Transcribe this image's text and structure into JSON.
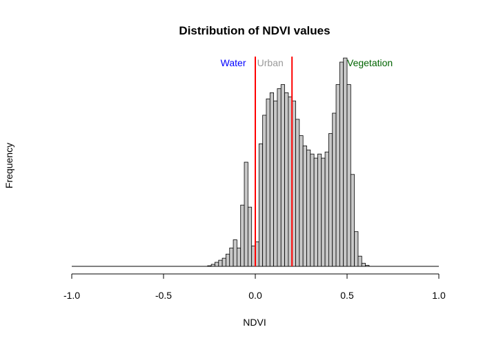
{
  "chart_data": {
    "type": "bar",
    "title": "Distribution of NDVI values",
    "xlabel": "NDVI",
    "ylabel": "Frequency",
    "xlim": [
      -1.0,
      1.0
    ],
    "ylim": [
      0,
      100
    ],
    "bin_width": 0.02,
    "x_ticks": [
      -1.0,
      -0.5,
      0.0,
      0.5,
      1.0
    ],
    "x_tick_labels": [
      "-1.0",
      "-0.5",
      "0.0",
      "0.5",
      "1.0"
    ],
    "grid": false,
    "bins": [
      {
        "x0": -0.26,
        "count": 0.3
      },
      {
        "x0": -0.24,
        "count": 1
      },
      {
        "x0": -0.22,
        "count": 2
      },
      {
        "x0": -0.2,
        "count": 3
      },
      {
        "x0": -0.18,
        "count": 4
      },
      {
        "x0": -0.16,
        "count": 6
      },
      {
        "x0": -0.14,
        "count": 9
      },
      {
        "x0": -0.12,
        "count": 13
      },
      {
        "x0": -0.1,
        "count": 9
      },
      {
        "x0": -0.08,
        "count": 30
      },
      {
        "x0": -0.06,
        "count": 51
      },
      {
        "x0": -0.04,
        "count": 29
      },
      {
        "x0": -0.02,
        "count": 10
      },
      {
        "x0": 0.0,
        "count": 12
      },
      {
        "x0": 0.02,
        "count": 60
      },
      {
        "x0": 0.04,
        "count": 74
      },
      {
        "x0": 0.06,
        "count": 82
      },
      {
        "x0": 0.08,
        "count": 85
      },
      {
        "x0": 0.1,
        "count": 81
      },
      {
        "x0": 0.12,
        "count": 87
      },
      {
        "x0": 0.14,
        "count": 89
      },
      {
        "x0": 0.16,
        "count": 85
      },
      {
        "x0": 0.18,
        "count": 83
      },
      {
        "x0": 0.2,
        "count": 81
      },
      {
        "x0": 0.22,
        "count": 72
      },
      {
        "x0": 0.24,
        "count": 64
      },
      {
        "x0": 0.26,
        "count": 59
      },
      {
        "x0": 0.28,
        "count": 57
      },
      {
        "x0": 0.3,
        "count": 55
      },
      {
        "x0": 0.32,
        "count": 53
      },
      {
        "x0": 0.34,
        "count": 55
      },
      {
        "x0": 0.36,
        "count": 53
      },
      {
        "x0": 0.38,
        "count": 56
      },
      {
        "x0": 0.4,
        "count": 65
      },
      {
        "x0": 0.42,
        "count": 75
      },
      {
        "x0": 0.44,
        "count": 89
      },
      {
        "x0": 0.46,
        "count": 100
      },
      {
        "x0": 0.48,
        "count": 102
      },
      {
        "x0": 0.5,
        "count": 89
      },
      {
        "x0": 0.52,
        "count": 45
      },
      {
        "x0": 0.54,
        "count": 17
      },
      {
        "x0": 0.56,
        "count": 5
      },
      {
        "x0": 0.58,
        "count": 1.5
      },
      {
        "x0": 0.6,
        "count": 0.5
      }
    ],
    "reference_lines": [
      {
        "x": 0.0,
        "color": "#ff0000"
      },
      {
        "x": 0.2,
        "color": "#ff0000"
      }
    ],
    "annotations": [
      {
        "label": "Water",
        "color": "#0000ff"
      },
      {
        "label": "Urban",
        "color": "#999999"
      },
      {
        "label": "Vegetation",
        "color": "#006400"
      }
    ]
  }
}
